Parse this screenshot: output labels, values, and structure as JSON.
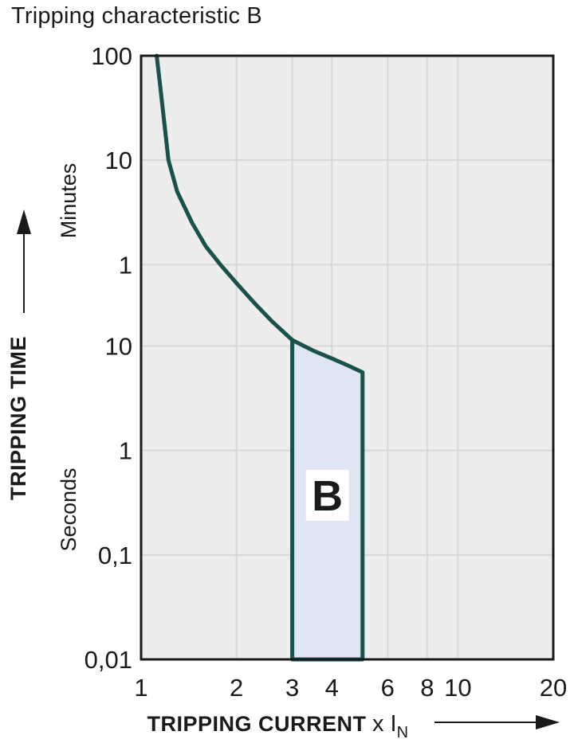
{
  "title": "Tripping characteristic B",
  "chart_data": {
    "type": "line",
    "title": "Tripping characteristic B",
    "x_axis": {
      "label": "TRIPPING CURRENT",
      "multiplier": "x I",
      "multiplier_subscript": "N",
      "scale": "log",
      "min": 1,
      "max": 20,
      "ticks": [
        {
          "label": "1",
          "value": 1
        },
        {
          "label": "2",
          "value": 2
        },
        {
          "label": "3",
          "value": 3
        },
        {
          "label": "4",
          "value": 4
        },
        {
          "label": "6",
          "value": 6
        },
        {
          "label": "8",
          "value": 8
        },
        {
          "label": "10",
          "value": 10
        },
        {
          "label": "20",
          "value": 20
        }
      ]
    },
    "y_axis": {
      "label": "TRIPPING TIME",
      "scale": "log",
      "top_seconds": 6000,
      "bottom_seconds": 0.01,
      "unit_top": "Minutes",
      "unit_bottom": "Seconds",
      "ticks": [
        {
          "label": "100",
          "seconds": 6000,
          "unit": "minutes"
        },
        {
          "label": "10",
          "seconds": 600,
          "unit": "minutes"
        },
        {
          "label": "1",
          "seconds": 60,
          "unit": "minutes"
        },
        {
          "label": "10",
          "seconds": 10,
          "unit": "seconds"
        },
        {
          "label": "1",
          "seconds": 1,
          "unit": "seconds"
        },
        {
          "label": "0,1",
          "seconds": 0.1,
          "unit": "seconds"
        },
        {
          "label": "0,01",
          "seconds": 0.01,
          "unit": "seconds"
        }
      ]
    },
    "series": [
      {
        "name": "thermal-trip-curve",
        "points": [
          [
            1.12,
            6000
          ],
          [
            1.15,
            3000
          ],
          [
            1.22,
            600
          ],
          [
            1.3,
            300
          ],
          [
            1.45,
            150
          ],
          [
            1.6,
            90
          ],
          [
            1.78,
            60
          ],
          [
            2.0,
            40
          ],
          [
            2.3,
            25
          ],
          [
            2.6,
            17
          ],
          [
            3.0,
            11.4
          ]
        ]
      }
    ],
    "region": {
      "label": "B",
      "x_min": 3,
      "x_max": 5,
      "upper_points": [
        [
          3,
          11.4
        ],
        [
          3.5,
          9.0
        ],
        [
          4,
          7.6
        ],
        [
          4.5,
          6.5
        ],
        [
          5,
          5.6
        ]
      ],
      "bottom_seconds": 0.01
    },
    "legend": "none",
    "grid": true,
    "colors": {
      "curve": "#1a514d",
      "region_fill": "#dfe5f3",
      "region_label_bg": "#ffffff",
      "plot_background": "#ededed",
      "gridline": "#d7d7d7",
      "plot_border": "#1a1a1a",
      "text": "#1a1a1a"
    }
  }
}
